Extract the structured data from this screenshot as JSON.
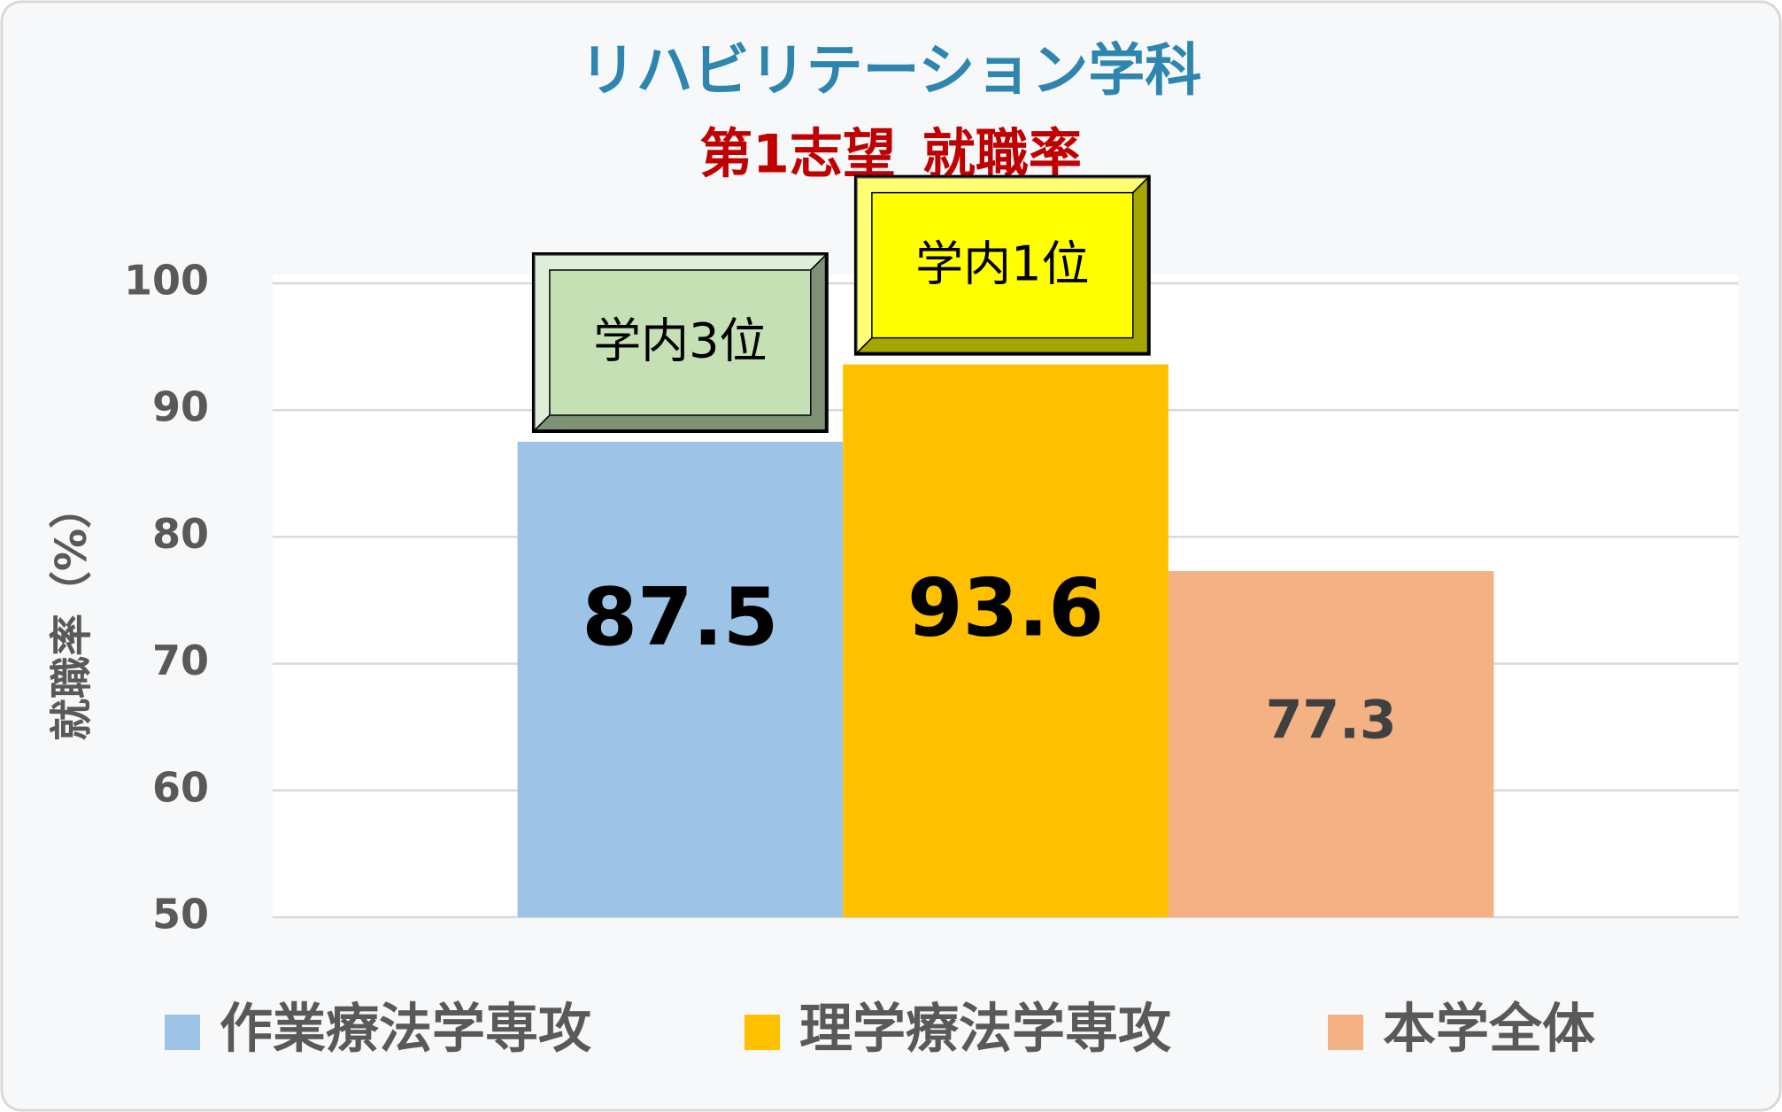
{
  "chart_data": {
    "type": "bar",
    "title": "リハビリテーション学科",
    "subtitle": "第1志望_就職率",
    "y_label": "就職率（%）",
    "series": [
      {
        "name": "作業療法学専攻",
        "color": "#9dc3e6",
        "values": [
          87.5
        ]
      },
      {
        "name": "理学療法学専攻",
        "color": "#ffc000",
        "values": [
          93.6
        ]
      },
      {
        "name": "本学全体",
        "color": "#f4b183",
        "values": [
          77.3
        ]
      }
    ],
    "annotations": [
      {
        "text": "学内3位",
        "color": "#c5e0b4"
      },
      {
        "text": "学内1位",
        "color": "#ffff00"
      }
    ],
    "ylim": [
      50,
      100
    ],
    "yticks": [
      50,
      60,
      70,
      80,
      90,
      100
    ],
    "grid": true,
    "legend": "bottom"
  }
}
